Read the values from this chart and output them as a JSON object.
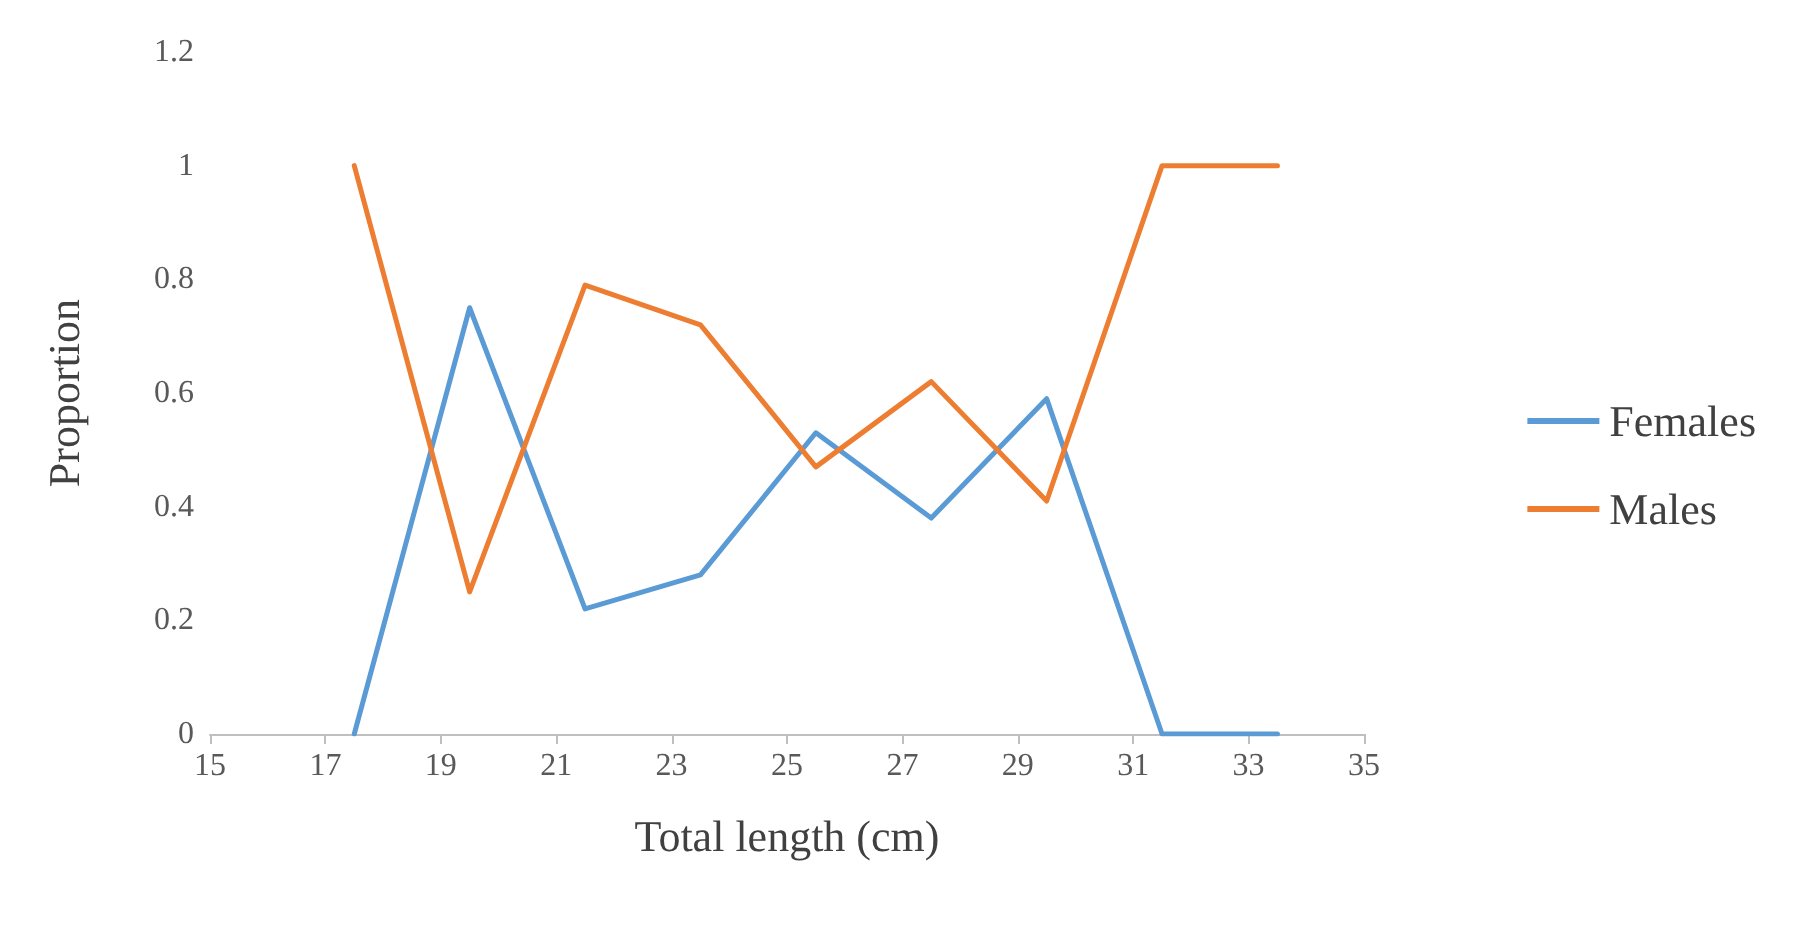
{
  "chart_data": {
    "type": "line",
    "xlabel": "Total length (cm)",
    "ylabel": "Proportion",
    "x": [
      17.5,
      19.5,
      21.5,
      23.5,
      25.5,
      27.5,
      29.5,
      31.5,
      33.5
    ],
    "series": [
      {
        "name": "Females",
        "color": "#5b9bd5",
        "values": [
          0,
          0.75,
          0.22,
          0.28,
          0.53,
          0.38,
          0.59,
          0,
          0
        ]
      },
      {
        "name": "Males",
        "color": "#ed7d31",
        "values": [
          1,
          0.25,
          0.79,
          0.72,
          0.47,
          0.62,
          0.41,
          1,
          1
        ]
      }
    ],
    "xlim": [
      15,
      35
    ],
    "xticks": [
      15,
      17,
      19,
      21,
      23,
      25,
      27,
      29,
      31,
      33,
      35
    ],
    "ylim": [
      0,
      1.2
    ],
    "yticks": [
      0,
      0.2,
      0.4,
      0.6,
      0.8,
      1,
      1.2
    ],
    "grid": false,
    "legend": "right",
    "marker": "none",
    "line_style": "solid"
  }
}
